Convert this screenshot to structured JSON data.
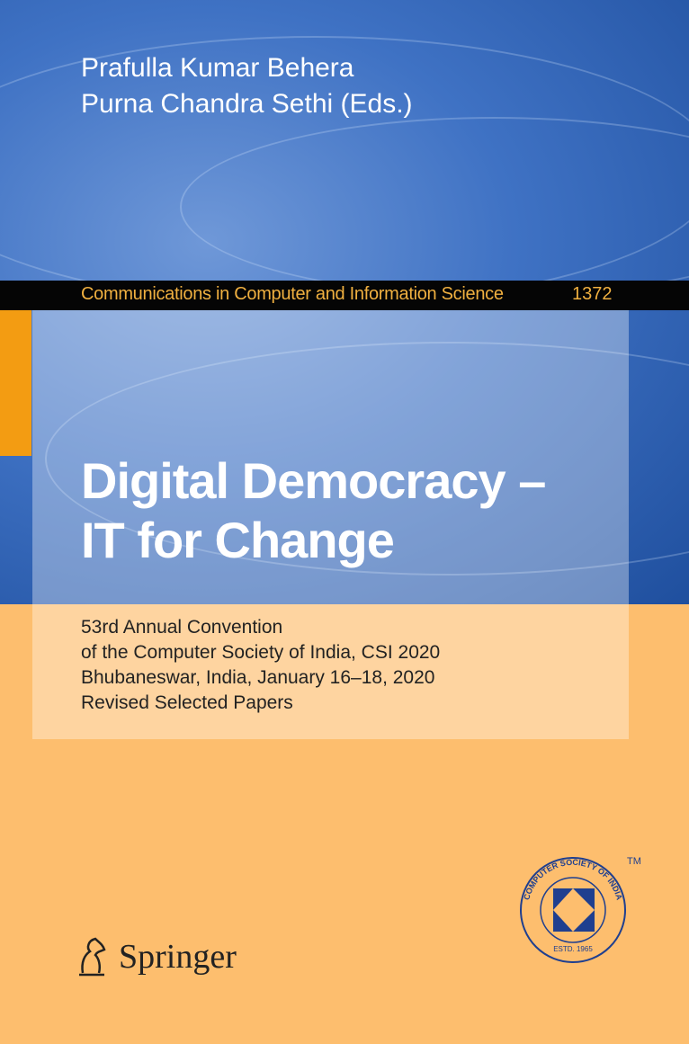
{
  "editors": [
    "Prafulla Kumar Behera",
    "Purna Chandra Sethi (Eds.)"
  ],
  "series": {
    "name": "Communications in Computer and Information Science",
    "volume": "1372"
  },
  "title": [
    "Digital Democracy –",
    "IT for Change"
  ],
  "subtitle": [
    "53rd Annual Convention",
    "of the Computer Society of India, CSI 2020",
    "Bhubaneswar, India, January 16–18, 2020",
    "Revised Selected Papers"
  ],
  "publisher": "Springer",
  "csi_logo": {
    "text": "COMPUTER SOCIETY OF INDIA",
    "estd": "ESTD. 1965",
    "tm": "TM",
    "color": "#1f3f8f"
  }
}
